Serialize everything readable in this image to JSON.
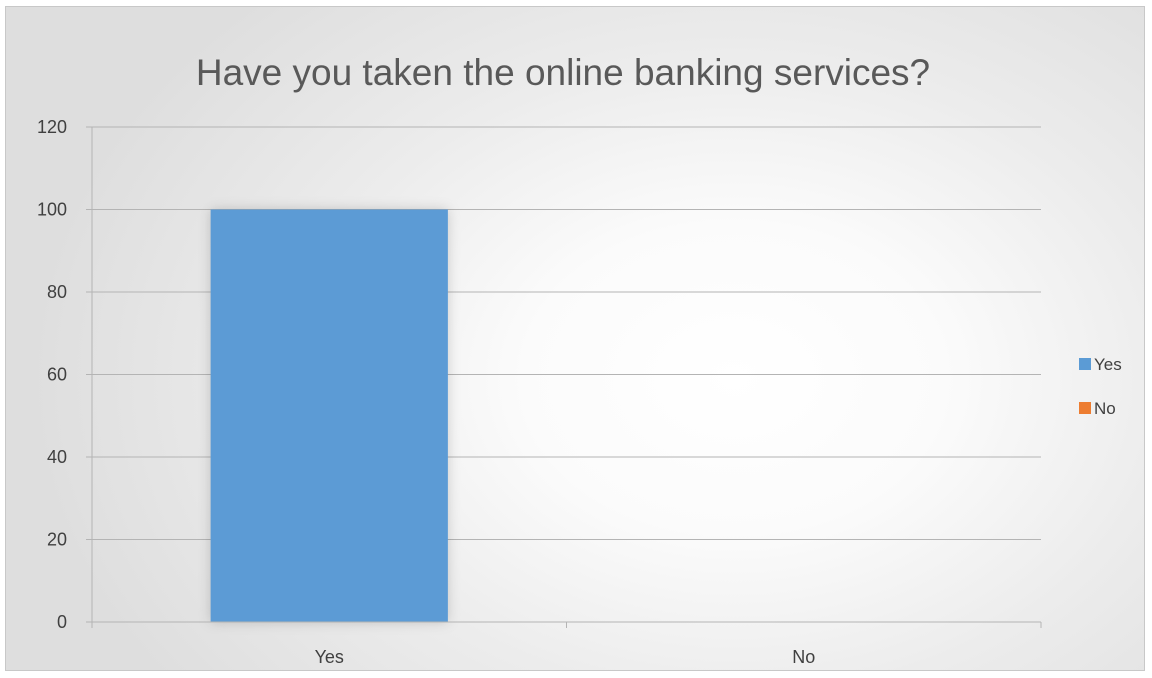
{
  "chart_data": {
    "type": "bar",
    "title": "Have you taken the online banking services?",
    "categories": [
      "Yes",
      "No"
    ],
    "series": [
      {
        "name": "Yes",
        "values": [
          100,
          null
        ],
        "color": "#5b9bd5"
      },
      {
        "name": "No",
        "values": [
          null,
          0
        ],
        "color": "#ed7d31"
      }
    ],
    "ylim": [
      0,
      120
    ],
    "yticks": [
      0,
      20,
      40,
      60,
      80,
      100,
      120
    ],
    "grid": true,
    "legend": "right"
  }
}
